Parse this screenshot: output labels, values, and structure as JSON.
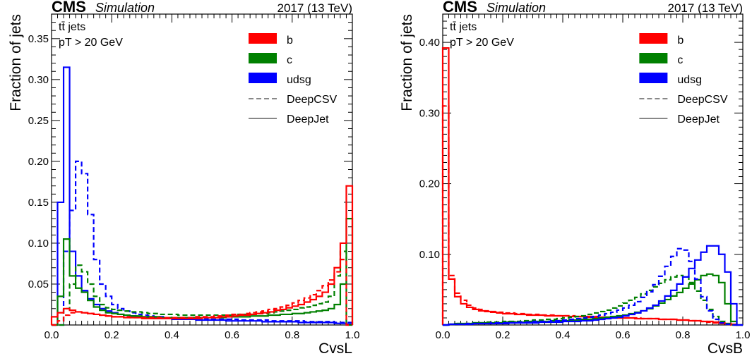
{
  "colors": {
    "b": "#ff0000",
    "c": "#008000",
    "udsg": "#0000ff",
    "legend_line": "#888888"
  },
  "chart_data": [
    {
      "type": "line",
      "experiment": "CMS",
      "label": "Simulation",
      "energy": "2017 (13 TeV)",
      "annotation": [
        "tt̄ jets",
        "pT > 20 GeV"
      ],
      "xlabel": "CvsL",
      "ylabel": "Fraction of jets",
      "xlim": [
        0,
        1
      ],
      "ylim": [
        0,
        0.38
      ],
      "xticks": [
        0.0,
        0.2,
        0.4,
        0.6,
        0.8,
        1.0
      ],
      "xtick_labels": [
        "0.0",
        "0.2",
        "0.4",
        "0.6",
        "0.8",
        "1.0"
      ],
      "yticks": [
        0.05,
        0.1,
        0.15,
        0.2,
        0.25,
        0.3,
        0.35
      ],
      "ytick_labels": [
        "0.05",
        "0.10",
        "0.15",
        "0.20",
        "0.25",
        "0.30",
        "0.35"
      ],
      "legend": [
        "b",
        "c",
        "udsg",
        "DeepCSV",
        "DeepJet"
      ],
      "legend_position": "top-right",
      "bins": 50,
      "series": [
        {
          "flavour": "udsg",
          "tagger": "DeepJet",
          "values": [
            0.0,
            0.15,
            0.315,
            0.09,
            0.06,
            0.042,
            0.032,
            0.025,
            0.02,
            0.017,
            0.015,
            0.013,
            0.012,
            0.011,
            0.01,
            0.009,
            0.009,
            0.008,
            0.008,
            0.008,
            0.007,
            0.007,
            0.007,
            0.007,
            0.006,
            0.006,
            0.006,
            0.006,
            0.006,
            0.005,
            0.005,
            0.005,
            0.005,
            0.005,
            0.005,
            0.004,
            0.004,
            0.004,
            0.004,
            0.004,
            0.004,
            0.003,
            0.003,
            0.003,
            0.003,
            0.003,
            0.003,
            0.002,
            0.002,
            0.001
          ]
        },
        {
          "flavour": "udsg",
          "tagger": "DeepCSV",
          "values": [
            0.0,
            0.0,
            0.09,
            0.14,
            0.2,
            0.185,
            0.135,
            0.08,
            0.05,
            0.035,
            0.025,
            0.02,
            0.017,
            0.015,
            0.013,
            0.012,
            0.011,
            0.01,
            0.01,
            0.009,
            0.009,
            0.009,
            0.008,
            0.008,
            0.008,
            0.008,
            0.007,
            0.007,
            0.007,
            0.007,
            0.007,
            0.006,
            0.006,
            0.006,
            0.006,
            0.006,
            0.005,
            0.005,
            0.005,
            0.005,
            0.005,
            0.005,
            0.004,
            0.004,
            0.004,
            0.004,
            0.004,
            0.003,
            0.003,
            0.003
          ]
        },
        {
          "flavour": "c",
          "tagger": "DeepJet",
          "values": [
            0.0,
            0.035,
            0.105,
            0.06,
            0.045,
            0.04,
            0.03,
            0.022,
            0.018,
            0.015,
            0.014,
            0.013,
            0.012,
            0.011,
            0.011,
            0.01,
            0.01,
            0.01,
            0.009,
            0.009,
            0.009,
            0.009,
            0.009,
            0.009,
            0.009,
            0.009,
            0.009,
            0.009,
            0.009,
            0.01,
            0.01,
            0.01,
            0.01,
            0.011,
            0.011,
            0.011,
            0.012,
            0.012,
            0.013,
            0.013,
            0.014,
            0.014,
            0.015,
            0.016,
            0.017,
            0.018,
            0.02,
            0.025,
            0.05,
            0.13
          ]
        },
        {
          "flavour": "c",
          "tagger": "DeepCSV",
          "values": [
            0.0,
            0.0,
            0.02,
            0.05,
            0.073,
            0.065,
            0.05,
            0.035,
            0.025,
            0.021,
            0.019,
            0.018,
            0.017,
            0.016,
            0.016,
            0.015,
            0.014,
            0.014,
            0.013,
            0.013,
            0.013,
            0.012,
            0.012,
            0.012,
            0.012,
            0.012,
            0.012,
            0.012,
            0.012,
            0.012,
            0.012,
            0.013,
            0.013,
            0.013,
            0.014,
            0.014,
            0.015,
            0.016,
            0.017,
            0.018,
            0.019,
            0.021,
            0.022,
            0.024,
            0.026,
            0.028,
            0.035,
            0.06,
            0.09,
            0.0
          ]
        },
        {
          "flavour": "b",
          "tagger": "DeepJet",
          "values": [
            0.01,
            0.015,
            0.02,
            0.018,
            0.016,
            0.015,
            0.014,
            0.013,
            0.012,
            0.011,
            0.01,
            0.01,
            0.009,
            0.009,
            0.009,
            0.008,
            0.008,
            0.008,
            0.008,
            0.008,
            0.008,
            0.008,
            0.008,
            0.008,
            0.008,
            0.009,
            0.009,
            0.009,
            0.01,
            0.01,
            0.011,
            0.012,
            0.012,
            0.013,
            0.014,
            0.015,
            0.016,
            0.018,
            0.019,
            0.021,
            0.023,
            0.025,
            0.028,
            0.031,
            0.035,
            0.04,
            0.05,
            0.07,
            0.1,
            0.17
          ]
        },
        {
          "flavour": "b",
          "tagger": "DeepCSV",
          "values": [
            0.0,
            0.005,
            0.012,
            0.015,
            0.016,
            0.015,
            0.014,
            0.013,
            0.012,
            0.011,
            0.01,
            0.01,
            0.01,
            0.009,
            0.009,
            0.009,
            0.009,
            0.009,
            0.009,
            0.009,
            0.009,
            0.009,
            0.009,
            0.009,
            0.01,
            0.01,
            0.01,
            0.011,
            0.011,
            0.012,
            0.013,
            0.013,
            0.014,
            0.015,
            0.016,
            0.017,
            0.019,
            0.02,
            0.022,
            0.024,
            0.027,
            0.03,
            0.033,
            0.037,
            0.042,
            0.048,
            0.055,
            0.065,
            0.08,
            0.0
          ]
        }
      ]
    },
    {
      "type": "line",
      "experiment": "CMS",
      "label": "Simulation",
      "energy": "2017 (13 TeV)",
      "annotation": [
        "tt̄ jets",
        "pT > 20 GeV"
      ],
      "xlabel": "CvsB",
      "ylabel": "Fraction of jets",
      "xlim": [
        0,
        1
      ],
      "ylim": [
        0,
        0.44
      ],
      "xticks": [
        0.0,
        0.2,
        0.4,
        0.6,
        0.8,
        1.0
      ],
      "xtick_labels": [
        "0.0",
        "0.2",
        "0.4",
        "0.6",
        "0.8",
        "1.0"
      ],
      "yticks": [
        0.1,
        0.2,
        0.3,
        0.4
      ],
      "ytick_labels": [
        "0.10",
        "0.20",
        "0.30",
        "0.40"
      ],
      "legend": [
        "b",
        "c",
        "udsg",
        "DeepCSV",
        "DeepJet"
      ],
      "legend_position": "top-right",
      "bins": 50,
      "series": [
        {
          "flavour": "b",
          "tagger": "DeepJet",
          "values": [
            0.392,
            0.065,
            0.04,
            0.03,
            0.025,
            0.022,
            0.02,
            0.019,
            0.018,
            0.017,
            0.016,
            0.016,
            0.015,
            0.015,
            0.014,
            0.014,
            0.014,
            0.013,
            0.013,
            0.013,
            0.013,
            0.012,
            0.012,
            0.012,
            0.011,
            0.011,
            0.011,
            0.011,
            0.01,
            0.01,
            0.01,
            0.01,
            0.009,
            0.009,
            0.009,
            0.009,
            0.008,
            0.008,
            0.008,
            0.007,
            0.007,
            0.006,
            0.006,
            0.005,
            0.005,
            0.004,
            0.003,
            0.002,
            0.001,
            0.0
          ]
        },
        {
          "flavour": "b",
          "tagger": "DeepCSV",
          "values": [
            0.31,
            0.07,
            0.045,
            0.035,
            0.028,
            0.024,
            0.022,
            0.02,
            0.019,
            0.018,
            0.017,
            0.017,
            0.016,
            0.016,
            0.015,
            0.015,
            0.014,
            0.014,
            0.014,
            0.013,
            0.013,
            0.013,
            0.012,
            0.012,
            0.012,
            0.012,
            0.011,
            0.011,
            0.011,
            0.01,
            0.01,
            0.01,
            0.01,
            0.009,
            0.009,
            0.009,
            0.008,
            0.008,
            0.008,
            0.007,
            0.007,
            0.006,
            0.006,
            0.005,
            0.004,
            0.003,
            0.002,
            0.001,
            0.0,
            0.0
          ]
        },
        {
          "flavour": "c",
          "tagger": "DeepJet",
          "values": [
            0.0,
            0.001,
            0.002,
            0.002,
            0.002,
            0.003,
            0.003,
            0.003,
            0.003,
            0.003,
            0.004,
            0.004,
            0.004,
            0.004,
            0.005,
            0.005,
            0.005,
            0.005,
            0.006,
            0.006,
            0.006,
            0.007,
            0.007,
            0.008,
            0.008,
            0.009,
            0.01,
            0.011,
            0.012,
            0.013,
            0.014,
            0.016,
            0.018,
            0.02,
            0.023,
            0.027,
            0.031,
            0.036,
            0.041,
            0.046,
            0.052,
            0.058,
            0.064,
            0.07,
            0.072,
            0.07,
            0.06,
            0.03,
            0.005,
            0.0
          ]
        },
        {
          "flavour": "c",
          "tagger": "DeepCSV",
          "values": [
            0.0,
            0.001,
            0.002,
            0.002,
            0.002,
            0.003,
            0.003,
            0.004,
            0.004,
            0.004,
            0.005,
            0.005,
            0.005,
            0.006,
            0.006,
            0.007,
            0.007,
            0.008,
            0.008,
            0.009,
            0.01,
            0.011,
            0.012,
            0.013,
            0.015,
            0.017,
            0.019,
            0.021,
            0.024,
            0.027,
            0.031,
            0.035,
            0.039,
            0.044,
            0.049,
            0.054,
            0.059,
            0.064,
            0.068,
            0.07,
            0.068,
            0.06,
            0.048,
            0.035,
            0.022,
            0.012,
            0.005,
            0.002,
            0.0,
            0.0
          ]
        },
        {
          "flavour": "udsg",
          "tagger": "DeepJet",
          "values": [
            0.0,
            0.001,
            0.001,
            0.001,
            0.001,
            0.002,
            0.002,
            0.002,
            0.002,
            0.002,
            0.002,
            0.003,
            0.003,
            0.003,
            0.003,
            0.003,
            0.004,
            0.004,
            0.004,
            0.004,
            0.005,
            0.005,
            0.005,
            0.006,
            0.006,
            0.007,
            0.008,
            0.009,
            0.01,
            0.011,
            0.013,
            0.015,
            0.017,
            0.02,
            0.024,
            0.028,
            0.034,
            0.041,
            0.049,
            0.058,
            0.068,
            0.08,
            0.092,
            0.103,
            0.112,
            0.112,
            0.1,
            0.075,
            0.03,
            0.0
          ]
        },
        {
          "flavour": "udsg",
          "tagger": "DeepCSV",
          "values": [
            0.0,
            0.001,
            0.001,
            0.001,
            0.002,
            0.002,
            0.002,
            0.002,
            0.003,
            0.003,
            0.003,
            0.003,
            0.004,
            0.004,
            0.004,
            0.005,
            0.005,
            0.005,
            0.006,
            0.006,
            0.007,
            0.008,
            0.009,
            0.01,
            0.011,
            0.012,
            0.014,
            0.016,
            0.018,
            0.021,
            0.024,
            0.028,
            0.033,
            0.039,
            0.047,
            0.057,
            0.069,
            0.083,
            0.097,
            0.108,
            0.106,
            0.09,
            0.065,
            0.04,
            0.02,
            0.008,
            0.003,
            0.001,
            0.0,
            0.0
          ]
        }
      ]
    }
  ]
}
